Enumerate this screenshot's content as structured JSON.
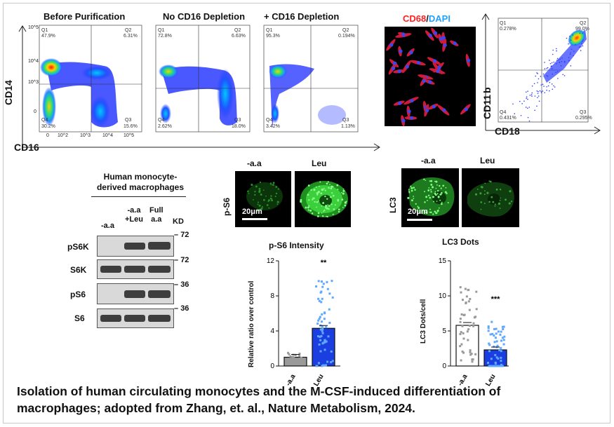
{
  "flow": {
    "panels": [
      {
        "title": "Before Purification",
        "q1": "Q1",
        "q1v": "47.9%",
        "q2": "Q2",
        "q2v": "6.31%",
        "q3": "Q3",
        "q3v": "15.6%",
        "q4": "Q4",
        "q4v": "30.2%"
      },
      {
        "title": "No CD16 Depletion",
        "q1": "Q1",
        "q1v": "72.8%",
        "q2": "Q2",
        "q2v": "6.63%",
        "q3": "Q3",
        "q3v": "18.0%",
        "q4": "Q4",
        "q4v": "2.62%"
      },
      {
        "title": "+ CD16 Depletion",
        "q1": "Q1",
        "q1v": "95.3%",
        "q2": "Q2",
        "q2v": "0.194%",
        "q3": "Q3",
        "q3v": "1.13%",
        "q4": "Q4",
        "q4v": "3.42%"
      }
    ],
    "y_axis_label": "CD14",
    "x_axis_label": "CD16",
    "y_ticks": [
      "10^5",
      "10^4",
      "10^3",
      "0"
    ],
    "x_ticks": [
      "0",
      "10^2",
      "10^3",
      "10^4",
      "10^5"
    ]
  },
  "cd68": {
    "label_cd68": "CD68",
    "label_slash": "/",
    "label_dapi": "DAPI",
    "color_cd68": "#ff2020",
    "color_dapi": "#1fa2ff"
  },
  "cd11_flow": {
    "y_axis_label": "CD11",
    "y_axis_suffix": "b",
    "x_axis_label": "CD18",
    "q1": "Q1",
    "q1v": "0.278%",
    "q2": "Q2",
    "q2v": "99.0%",
    "q3": "Q3",
    "q3v": "0.295%",
    "q4": "Q4",
    "q4v": "0.431%"
  },
  "western": {
    "header_line1": "Human monocyte-",
    "header_line2": "derived macrophages",
    "col1": "-a.a",
    "col2_l1": "-a.a",
    "col2_l2": "+Leu",
    "col3_l1": "Full",
    "col3_l2": "a.a",
    "kd": "KD",
    "rows": [
      {
        "label": "pS6K",
        "marker": "72"
      },
      {
        "label": "S6K",
        "marker": "72"
      },
      {
        "label": "pS6",
        "marker": "36"
      },
      {
        "label": "S6",
        "marker": "36"
      }
    ]
  },
  "ps6_images": {
    "row_label": "p-S6",
    "col1": "-a.a",
    "col2": "Leu",
    "scale": "20μm"
  },
  "lc3_images": {
    "row_label": "LC3",
    "col1": "-a.a",
    "col2": "Leu",
    "scale": "20μm"
  },
  "chart_data": [
    {
      "type": "bar",
      "title": "p-S6 Intensity",
      "ylabel": "Relative ratio over control",
      "categories": [
        "-a.a",
        "Leu"
      ],
      "values": [
        1.0,
        4.3
      ],
      "ylim": [
        0,
        12
      ],
      "yticks": [
        "0",
        "4",
        "8",
        "12"
      ],
      "significance": "**",
      "colors": [
        "#9a9a9a",
        "#1a3ee0"
      ]
    },
    {
      "type": "bar",
      "title": "LC3 Dots",
      "ylabel": "LC3 Dots/cell",
      "categories": [
        "-a.a",
        "Leu"
      ],
      "values": [
        5.8,
        2.3
      ],
      "ylim": [
        0,
        15
      ],
      "yticks": [
        "0",
        "5",
        "10",
        "15"
      ],
      "significance": "***",
      "colors": [
        "#ffffff",
        "#1a3ee0"
      ]
    }
  ],
  "caption": {
    "line1": "Isolation of human circulating monocytes and the M-CSF-induced differentiation of",
    "line2": "macrophages; adopted from Zhang, et. al., Nature Metabolism, 2024."
  }
}
